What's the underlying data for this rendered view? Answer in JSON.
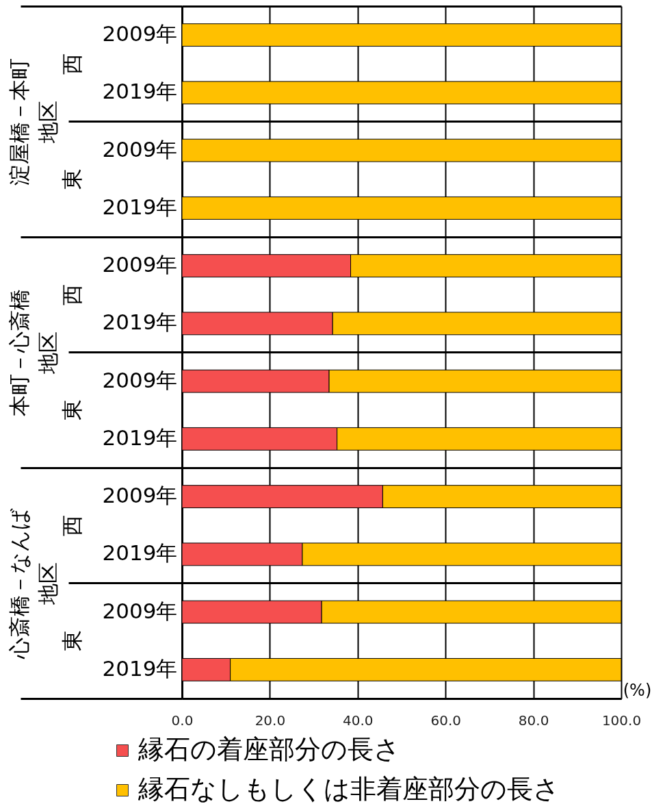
{
  "chart_data": {
    "type": "bar",
    "orientation": "horizontal",
    "stacked": true,
    "categories": [
      "2009年",
      "2019年",
      "2009年",
      "2019年",
      "2009年",
      "2019年",
      "2009年",
      "2019年",
      "2009年",
      "2019年",
      "2009年",
      "2019年"
    ],
    "annotations": [
      "淀屋橋－本町地区",
      "西",
      "東",
      "本町－心斎橋地区",
      "西",
      "東",
      "心斎橋－なんば地区",
      "西",
      "東"
    ],
    "xlabel": "(%)",
    "series": [
      {
        "name": "縁石の着座部分の長さ",
        "color": "#f54f4f",
        "values": [
          0,
          0,
          0,
          0,
          38.4,
          34.3,
          33.5,
          35.3,
          45.7,
          27.4,
          31.8,
          11.0
        ]
      },
      {
        "name": "縁石なしもしくは非着座部分の長さ",
        "color": "#ffc000",
        "values": [
          100,
          100,
          100,
          100,
          61.6,
          65.7,
          66.5,
          64.7,
          54.3,
          72.6,
          68.2,
          89.0
        ]
      }
    ],
    "xlim": [
      0,
      100
    ],
    "xticks": [
      {
        "value": 0,
        "label": "0.0"
      },
      {
        "value": 20,
        "label": "20.0"
      },
      {
        "value": 40,
        "label": "40.0"
      },
      {
        "value": 60,
        "label": "60.0"
      },
      {
        "value": 80,
        "label": "80.0"
      },
      {
        "value": 100,
        "label": "100.0"
      }
    ],
    "grid": true,
    "legend": "bottom"
  }
}
